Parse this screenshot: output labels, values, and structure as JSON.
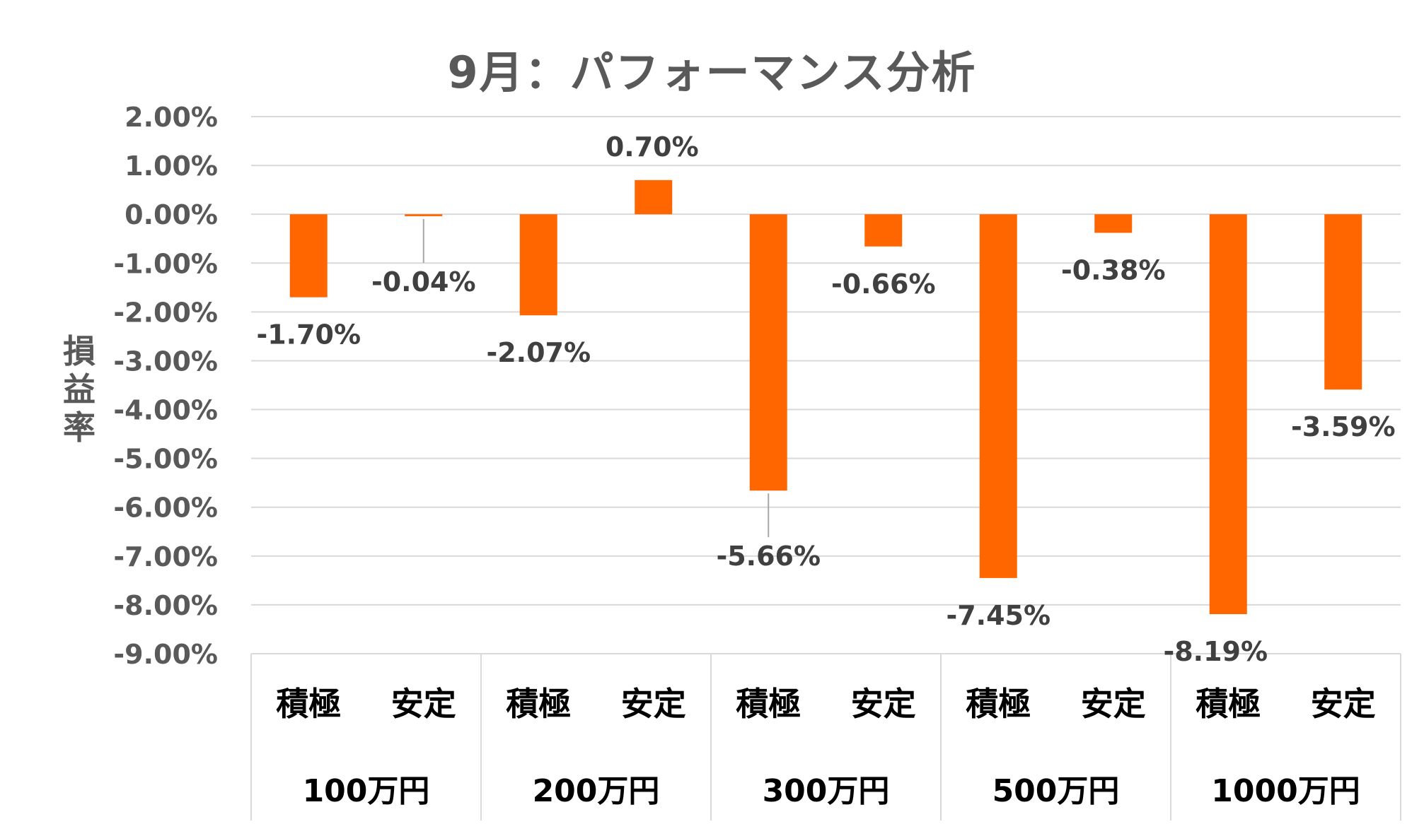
{
  "chart_data": {
    "type": "bar",
    "title": "9月：パフォーマンス分析",
    "ylabel": "損益率",
    "xlabel": "",
    "ylim": [
      -9,
      2
    ],
    "yticks": [
      2,
      1,
      0,
      -1,
      -2,
      -3,
      -4,
      -5,
      -6,
      -7,
      -8,
      -9
    ],
    "ytick_labels": [
      "2.00%",
      "1.00%",
      "0.00%",
      "-1.00%",
      "-2.00%",
      "-3.00%",
      "-4.00%",
      "-5.00%",
      "-6.00%",
      "-7.00%",
      "-8.00%",
      "-9.00%"
    ],
    "grid": true,
    "bar_color": "#FF6600",
    "groups": [
      "100万円",
      "200万円",
      "300万円",
      "500万円",
      "1000万円"
    ],
    "categories": [
      "積極",
      "安定",
      "積極",
      "安定",
      "積極",
      "安定",
      "積極",
      "安定",
      "積極",
      "安定"
    ],
    "values": [
      -1.7,
      -0.04,
      -2.07,
      0.7,
      -5.66,
      -0.66,
      -7.45,
      -0.38,
      -8.19,
      -3.59
    ],
    "data_labels": [
      "-1.70%",
      "-0.04%",
      "-2.07%",
      "0.70%",
      "-5.66%",
      "-0.66%",
      "-7.45%",
      "-0.38%",
      "-8.19%",
      "-3.59%"
    ]
  }
}
